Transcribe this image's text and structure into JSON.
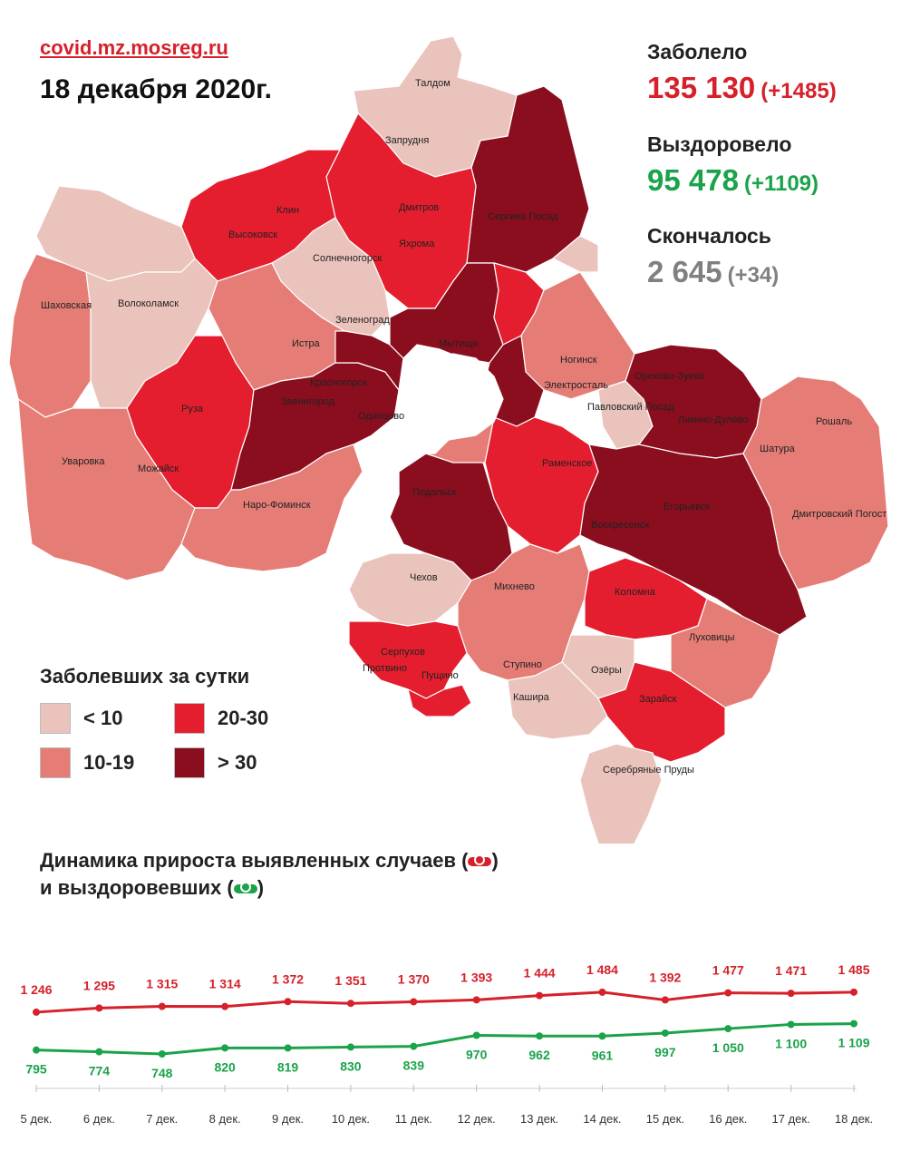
{
  "header": {
    "site": "covid.mz.mosreg.ru",
    "date": "18 декабря 2020г."
  },
  "stats": {
    "infected_label": "Заболело",
    "infected_value": "135 130",
    "infected_delta": "(+1485)",
    "recovered_label": "Выздоровело",
    "recovered_value": "95 478",
    "recovered_delta": "(+1109)",
    "died_label": "Скончалось",
    "died_value": "2 645",
    "died_delta": "(+34)",
    "colors": {
      "infected": "#d6202a",
      "recovered": "#1aa34a",
      "died": "#808080"
    }
  },
  "map": {
    "cities": {
      "taldom": "Талдом",
      "zaprudnya": "Запрудня",
      "klin": "Клин",
      "vysokovsk": "Высоковск",
      "dmitrov": "Дмитров",
      "yakhroma": "Яхрома",
      "sergiev_posad": "Сергиев Посад",
      "solnechnogorsk": "Солнечногорск",
      "shakhovskaya": "Шаховская",
      "volokolamsk": "Волоколамск",
      "zelenograd": "Зеленоград",
      "mytishchi": "Мытищи",
      "istra": "Истра",
      "krasnogorsk": "Красногорск",
      "zvenigorod": "Звенигород",
      "odintsovo": "Одинцово",
      "ruza": "Руза",
      "uvarovka": "Уваровка",
      "mozhaysk": "Можайск",
      "naro_fominsk": "Наро-Фоминск",
      "noginsk": "Ногинск",
      "elektrostal": "Электросталь",
      "pavlovsky_posad": "Павловский Посад",
      "orekhovo_zuevo": "Орехово-Зуево",
      "likino_dulevo": "Ликино-Дулёво",
      "roshal": "Рошаль",
      "shatura": "Шатура",
      "ramenskoe": "Раменское",
      "podolsk": "Подольск",
      "egoryevsk": "Егорьевск",
      "voskresensk": "Воскресенск",
      "dmitrovsky_pogost": "Дмитровский Погост",
      "chekhov": "Чехов",
      "mikhnevo": "Михнево",
      "kolomna": "Коломна",
      "serpukhov": "Серпухов",
      "protvino": "Протвино",
      "pushchino": "Пущино",
      "stupino": "Ступино",
      "lukhovitsy": "Луховицы",
      "ozyory": "Озёры",
      "kashira": "Кашира",
      "zaraysk": "Зарайск",
      "serebryanye_prudy": "Серебряные Пруды"
    },
    "colors": {
      "lt10": "#eac4bc",
      "c10_19": "#e57d76",
      "c20_30": "#e41e2e",
      "gt30": "#8b0e1f"
    }
  },
  "legend": {
    "title": "Заболевших за сутки",
    "items": [
      {
        "label": "< 10",
        "color": "#eac4bc"
      },
      {
        "label": "20-30",
        "color": "#e41e2e"
      },
      {
        "label": "10-19",
        "color": "#e57d76"
      },
      {
        "label": "> 30",
        "color": "#8b0e1f"
      }
    ]
  },
  "chart_title": {
    "line1_pre": "Динамика прироста выявленных случаев (",
    "line1_post": ")",
    "line2_pre": "и выздоровевших (",
    "line2_post": ")"
  },
  "chart_data": {
    "type": "line",
    "categories": [
      "5 дек.",
      "6 дек.",
      "7 дек.",
      "8 дек.",
      "9 дек.",
      "10 дек.",
      "11 дек.",
      "12 дек.",
      "13 дек.",
      "14 дек.",
      "15 дек.",
      "16 дек.",
      "17 дек.",
      "18 дек."
    ],
    "series": [
      {
        "color": "#d6202a",
        "values": [
          1246,
          1295,
          1315,
          1314,
          1372,
          1351,
          1370,
          1393,
          1444,
          1484,
          1392,
          1477,
          1471,
          1485
        ],
        "labels": [
          "1 246",
          "1 295",
          "1 315",
          "1 314",
          "1 372",
          "1 351",
          "1 370",
          "1 393",
          "1 444",
          "1 484",
          "1 392",
          "1 477",
          "1 471",
          "1 485"
        ]
      },
      {
        "color": "#1aa34a",
        "values": [
          795,
          774,
          748,
          820,
          819,
          830,
          839,
          970,
          962,
          961,
          997,
          1050,
          1100,
          1109
        ],
        "labels": [
          "795",
          "774",
          "748",
          "820",
          "819",
          "830",
          "839",
          "970",
          "962",
          "961",
          "997",
          "1 050",
          "1 100",
          "1 109"
        ]
      }
    ],
    "grid": false
  }
}
